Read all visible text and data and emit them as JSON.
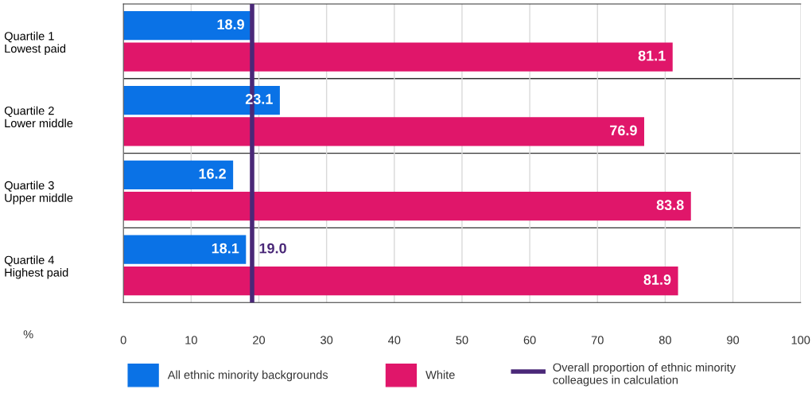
{
  "chart_data": {
    "type": "bar",
    "orientation": "horizontal",
    "categories": [
      "Quartile 1\nLowest paid",
      "Quartile 2\nLower middle",
      "Quartile 3\nUpper middle",
      "Quartile 4\nHighest paid"
    ],
    "series": [
      {
        "name": "All ethnic minority backgrounds",
        "color": "#0a72e6",
        "values": [
          18.9,
          23.1,
          16.2,
          18.1
        ]
      },
      {
        "name": "White",
        "color": "#e0166a",
        "values": [
          81.1,
          76.9,
          83.8,
          81.9
        ]
      }
    ],
    "xlim": [
      0,
      100
    ],
    "xticks": [
      0,
      10,
      20,
      30,
      40,
      50,
      60,
      70,
      80,
      90,
      100
    ],
    "xlabel": "%",
    "ref_lines": [
      {
        "axis": "x",
        "value": 19.0,
        "label": "Overall proportion of ethnic minority\ncolleagues in calculation",
        "color": "#4a2878"
      }
    ],
    "annotations": [
      "19.0"
    ],
    "data_labels": true,
    "grid": "x",
    "legend": "bottom"
  }
}
